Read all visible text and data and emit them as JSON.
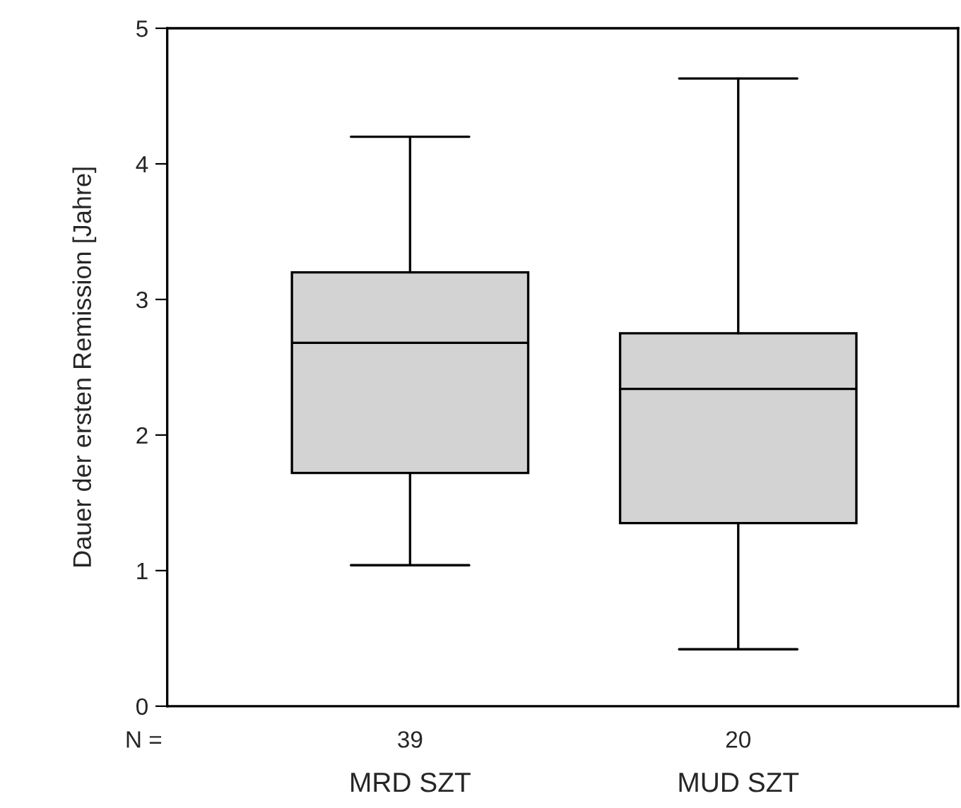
{
  "chart_data": {
    "type": "box",
    "ylabel": "Dauer der ersten Remission [Jahre]",
    "categories": [
      "MRD SZT",
      "MUD SZT"
    ],
    "boxes": [
      {
        "low": 1.04,
        "q1": 1.72,
        "median": 2.68,
        "q3": 3.2,
        "high": 4.2
      },
      {
        "low": 0.42,
        "q1": 1.35,
        "median": 2.34,
        "q3": 2.75,
        "high": 4.63
      }
    ],
    "color": "#d3d3d3",
    "ylim": [
      0,
      5
    ],
    "yticks": [
      0,
      1,
      2,
      3,
      4,
      5
    ],
    "grid": false,
    "annotations": [
      "N =",
      "39",
      "20"
    ]
  }
}
